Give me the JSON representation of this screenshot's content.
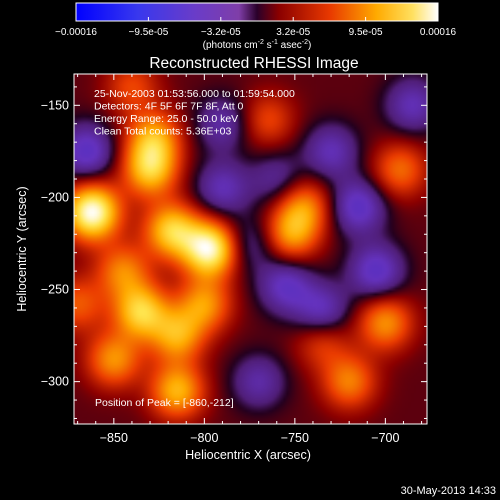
{
  "chart_data": {
    "type": "heatmap",
    "title": "Reconstructed RHESSI Image",
    "xlabel": "Heliocentric X (arcsec)",
    "ylabel": "Heliocentric Y (arcsec)",
    "xlim": [
      -872,
      -677
    ],
    "ylim": [
      -323,
      -133
    ],
    "x_ticks": [
      -850,
      -800,
      -750,
      -700
    ],
    "y_ticks": [
      -300,
      -250,
      -200,
      -150
    ],
    "colorbar": {
      "ticks": [
        "-0.00016",
        "-9.5e-05",
        "-3.2e-05",
        "3.2e-05",
        "9.5e-05",
        "0.00016"
      ],
      "range": [
        -0.00016,
        0.00016
      ],
      "units_prefix": "(photons cm",
      "units_exp1": "-2",
      "units_mid": " s",
      "units_exp2": "-1",
      "units_mid2": " asec",
      "units_exp3": "-2",
      "units_suffix": ")"
    },
    "annotations": [
      "25-Nov-2003 01:53:56.000 to 01:59:54.000",
      "Detectors: 4F 5F 6F 7F 8F, Att 0",
      "Energy Range: 25.0 - 50.0 keV",
      "Clean     Total counts: 5.36E+03"
    ],
    "peak_label": "Position of Peak = [-860,-212]",
    "peak_position": [
      -860,
      -212
    ],
    "sources": [
      {
        "x": -862,
        "y": -208,
        "amplitude": 1.0
      },
      {
        "x": -797,
        "y": -228,
        "amplitude": 0.95
      },
      {
        "x": -818,
        "y": -218,
        "amplitude": 0.7
      },
      {
        "x": -830,
        "y": -185,
        "amplitude": 0.65
      },
      {
        "x": -828,
        "y": -168,
        "amplitude": 0.55
      },
      {
        "x": -835,
        "y": -262,
        "amplitude": 0.7
      },
      {
        "x": -815,
        "y": -275,
        "amplitude": 0.55
      },
      {
        "x": -800,
        "y": -258,
        "amplitude": 0.5
      },
      {
        "x": -815,
        "y": -305,
        "amplitude": 0.6
      },
      {
        "x": -850,
        "y": -288,
        "amplitude": 0.5
      },
      {
        "x": -845,
        "y": -240,
        "amplitude": 0.45
      },
      {
        "x": -752,
        "y": -220,
        "amplitude": 0.5
      },
      {
        "x": -745,
        "y": -205,
        "amplitude": 0.45
      },
      {
        "x": -720,
        "y": -300,
        "amplitude": 0.45
      },
      {
        "x": -700,
        "y": -268,
        "amplitude": 0.5
      },
      {
        "x": -692,
        "y": -185,
        "amplitude": 0.4
      },
      {
        "x": -765,
        "y": -158,
        "amplitude": 0.3
      },
      {
        "x": -840,
        "y": -140,
        "amplitude": 0.3
      },
      {
        "x": -870,
        "y": -258,
        "amplitude": 0.35
      },
      {
        "x": -735,
        "y": -278,
        "amplitude": 0.3
      },
      {
        "x": -865,
        "y": -175,
        "amplitude": -0.45
      },
      {
        "x": -790,
        "y": -195,
        "amplitude": -0.35
      },
      {
        "x": -790,
        "y": -160,
        "amplitude": -0.3
      },
      {
        "x": -755,
        "y": -248,
        "amplitude": -0.4
      },
      {
        "x": -735,
        "y": -262,
        "amplitude": -0.4
      },
      {
        "x": -705,
        "y": -240,
        "amplitude": -0.45
      },
      {
        "x": -715,
        "y": -205,
        "amplitude": -0.45
      },
      {
        "x": -730,
        "y": -175,
        "amplitude": -0.35
      },
      {
        "x": -685,
        "y": -150,
        "amplitude": -0.35
      },
      {
        "x": -770,
        "y": -300,
        "amplitude": -0.3
      },
      {
        "x": -775,
        "y": -225,
        "amplitude": -0.25
      },
      {
        "x": -760,
        "y": -190,
        "amplitude": -0.25
      }
    ]
  },
  "footer": {
    "timestamp": "30-May-2013 14:33"
  }
}
